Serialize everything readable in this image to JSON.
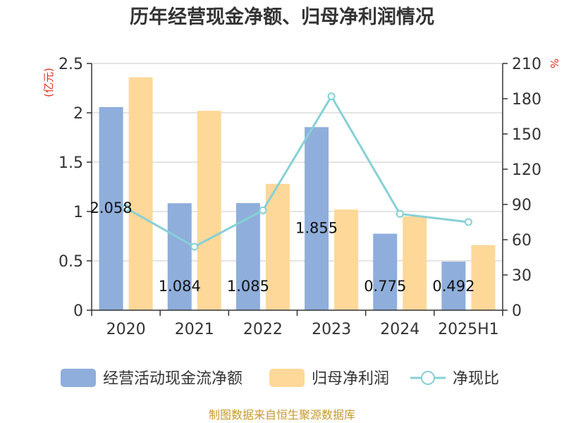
{
  "chart_data": {
    "type": "bar",
    "title": "历年经营现金净额、归母净利润情况",
    "categories": [
      "2020",
      "2021",
      "2022",
      "2023",
      "2024",
      "2025H1"
    ],
    "left_axis": {
      "unit": "(亿元)",
      "range": [
        0,
        2.5
      ],
      "ticks": [
        "0",
        "0.5",
        "1",
        "1.5",
        "2",
        "2.5"
      ]
    },
    "right_axis": {
      "unit": "%",
      "range": [
        0,
        210
      ],
      "ticks": [
        "0",
        "30",
        "60",
        "90",
        "120",
        "150",
        "180",
        "210"
      ]
    },
    "grid": true,
    "legend_position": "bottom",
    "series": [
      {
        "name": "经营活动现金流净额",
        "type": "bar",
        "axis": "left",
        "color": "#8faedb",
        "values": [
          2.058,
          1.084,
          1.085,
          1.855,
          0.775,
          0.492
        ],
        "labels": [
          "2.058",
          "1.084",
          "1.085",
          "1.855",
          "0.775",
          "0.492"
        ]
      },
      {
        "name": "归母净利润",
        "type": "bar",
        "axis": "left",
        "color": "#fdd899",
        "values": [
          2.36,
          2.02,
          1.28,
          1.02,
          0.95,
          0.66
        ]
      },
      {
        "name": "净现比",
        "type": "line",
        "axis": "right",
        "color": "#86d0d6",
        "values": [
          87,
          54,
          85,
          182,
          82,
          75
        ]
      }
    ]
  },
  "footer": {
    "source": "制图数据来自恒生聚源数据库"
  }
}
